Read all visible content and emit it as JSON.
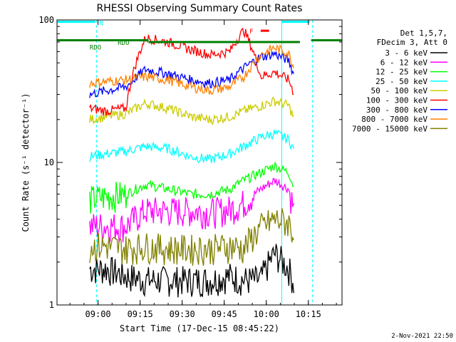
{
  "chart_data": {
    "type": "line",
    "title": "RHESSI Observing Summary Count Rates",
    "xlabel": "Start Time (17-Dec-15 08:45:22)",
    "ylabel": "Count Rate (s⁻¹ detector⁻¹)",
    "y_scale": "log",
    "ylim": [
      1,
      100
    ],
    "xlim": [
      "08:45:22",
      "10:27:00"
    ],
    "x_ticks": [
      "09:00",
      "09:15",
      "09:30",
      "09:45",
      "10:00",
      "10:15"
    ],
    "y_ticks": [
      "1",
      "10",
      "100"
    ],
    "legend_header": [
      "Det 1,5,7,",
      "FDecim 3, Att 0"
    ],
    "legend_position": "right",
    "series": [
      {
        "name": "3 - 6 keV",
        "color": "#000000",
        "x": [
          "08:57",
          "09:03",
          "09:10",
          "09:17",
          "09:25",
          "09:33",
          "09:40",
          "09:47",
          "09:52",
          "09:58",
          "10:03",
          "10:08",
          "10:10"
        ],
        "y": [
          1.8,
          1.8,
          1.6,
          1.5,
          1.5,
          1.5,
          1.5,
          1.6,
          1.5,
          1.5,
          2.3,
          1.8,
          1.4
        ]
      },
      {
        "name": "6 - 12 keV",
        "color": "#ff00ff",
        "x": [
          "08:57",
          "09:03",
          "09:10",
          "09:17",
          "09:25",
          "09:33",
          "09:40",
          "09:47",
          "09:52",
          "09:58",
          "10:03",
          "10:08",
          "10:10"
        ],
        "y": [
          3.6,
          3.6,
          3.6,
          4.6,
          4.6,
          4.6,
          4.5,
          4.7,
          5.2,
          6.5,
          7.5,
          6.5,
          4.5
        ]
      },
      {
        "name": "12 - 25 keV",
        "color": "#00ff00",
        "x": [
          "08:57",
          "09:03",
          "09:10",
          "09:17",
          "09:25",
          "09:33",
          "09:40",
          "09:47",
          "09:52",
          "09:58",
          "10:03",
          "10:08",
          "10:10"
        ],
        "y": [
          5.5,
          5.8,
          6.0,
          7.0,
          6.5,
          6.0,
          6.0,
          6.5,
          7.5,
          8.5,
          9.5,
          8.5,
          6.5
        ]
      },
      {
        "name": "25 - 50 keV",
        "color": "#00ffff",
        "x": [
          "08:57",
          "09:03",
          "09:10",
          "09:17",
          "09:25",
          "09:33",
          "09:40",
          "09:47",
          "09:52",
          "09:58",
          "10:03",
          "10:08",
          "10:10"
        ],
        "y": [
          11,
          11.5,
          12,
          13,
          12.5,
          11,
          10.5,
          11.5,
          13,
          15,
          16,
          14.5,
          12
        ]
      },
      {
        "name": "50 - 100 keV",
        "color": "#cccc00",
        "x": [
          "08:57",
          "09:03",
          "09:10",
          "09:17",
          "09:25",
          "09:33",
          "09:40",
          "09:47",
          "09:52",
          "09:58",
          "10:03",
          "10:08",
          "10:10"
        ],
        "y": [
          20,
          21,
          22,
          26,
          24,
          21,
          20,
          21,
          23,
          25,
          27,
          25,
          20
        ]
      },
      {
        "name": "100 - 300 keV",
        "color": "#ff0000",
        "x": [
          "08:57",
          "09:03",
          "09:10",
          "09:17",
          "09:25",
          "09:33",
          "09:40",
          "09:47",
          "09:52",
          "09:58",
          "10:03",
          "10:08",
          "10:10"
        ],
        "y": [
          24,
          23,
          24,
          75,
          70,
          62,
          57,
          60,
          85,
          40,
          43,
          38,
          30
        ]
      },
      {
        "name": "300 - 800 keV",
        "color": "#0000ff",
        "x": [
          "08:57",
          "09:03",
          "09:10",
          "09:17",
          "09:25",
          "09:33",
          "09:40",
          "09:47",
          "09:52",
          "09:58",
          "10:03",
          "10:08",
          "10:10"
        ],
        "y": [
          30,
          32,
          34,
          45,
          42,
          38,
          36,
          38,
          46,
          55,
          58,
          52,
          40
        ]
      },
      {
        "name": "800 - 7000 keV",
        "color": "#ff8000",
        "x": [
          "08:57",
          "09:03",
          "09:10",
          "09:17",
          "09:25",
          "09:33",
          "09:40",
          "09:47",
          "09:52",
          "09:58",
          "10:03",
          "10:08",
          "10:10"
        ],
        "y": [
          36,
          37,
          38,
          40,
          38,
          34,
          32,
          34,
          40,
          57,
          64,
          58,
          45
        ]
      },
      {
        "name": "7000 - 15000 keV",
        "color": "#808000",
        "x": [
          "08:57",
          "09:03",
          "09:10",
          "09:17",
          "09:25",
          "09:33",
          "09:40",
          "09:47",
          "09:52",
          "09:58",
          "10:03",
          "10:08",
          "10:10"
        ],
        "y": [
          2.6,
          2.6,
          2.5,
          2.6,
          2.5,
          2.5,
          2.5,
          2.6,
          2.5,
          3.5,
          4.0,
          3.8,
          3.0
        ]
      }
    ],
    "flag_labels": [
      {
        "text": "N",
        "color": "#00ffff"
      },
      {
        "text": "RDO",
        "color": "#008000"
      },
      {
        "text": "RDO",
        "color": "#008000"
      },
      {
        "text": "F",
        "color": "#ff0000"
      }
    ],
    "footer_date": "2-Nov-2021 22:50"
  }
}
